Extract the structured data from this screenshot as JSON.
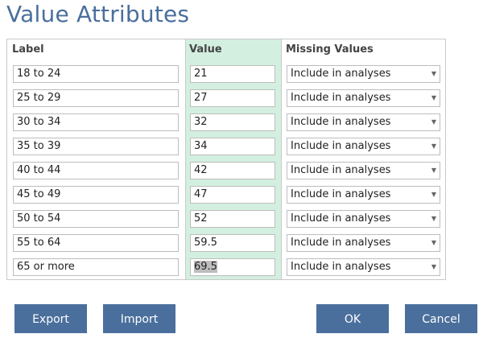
{
  "dialog": {
    "title": "Value Attributes"
  },
  "columns": {
    "label": "Label",
    "value": "Value",
    "missing": "Missing Values"
  },
  "rows": [
    {
      "label": "18 to 24",
      "value": "21",
      "missing": "Include in analyses"
    },
    {
      "label": "25 to 29",
      "value": "27",
      "missing": "Include in analyses"
    },
    {
      "label": "30 to 34",
      "value": "32",
      "missing": "Include in analyses"
    },
    {
      "label": "35 to 39",
      "value": "34",
      "missing": "Include in analyses"
    },
    {
      "label": "40 to 44",
      "value": "42",
      "missing": "Include in analyses"
    },
    {
      "label": "45 to 49",
      "value": "47",
      "missing": "Include in analyses"
    },
    {
      "label": "50 to 54",
      "value": "52",
      "missing": "Include in analyses"
    },
    {
      "label": "55 to 64",
      "value": "59.5",
      "missing": "Include in analyses"
    },
    {
      "label": "65 or more",
      "value_highlight": "69.5",
      "value_rest": "",
      "missing": "Include in analyses"
    }
  ],
  "buttons": {
    "export": "Export",
    "import": "Import",
    "ok": "OK",
    "cancel": "Cancel"
  },
  "colors": {
    "accent": "#4a6f9c",
    "value_column": "#d3efe0",
    "selection": "#bdbdbd"
  },
  "icons": {
    "dropdown": "chevron-down-icon"
  }
}
